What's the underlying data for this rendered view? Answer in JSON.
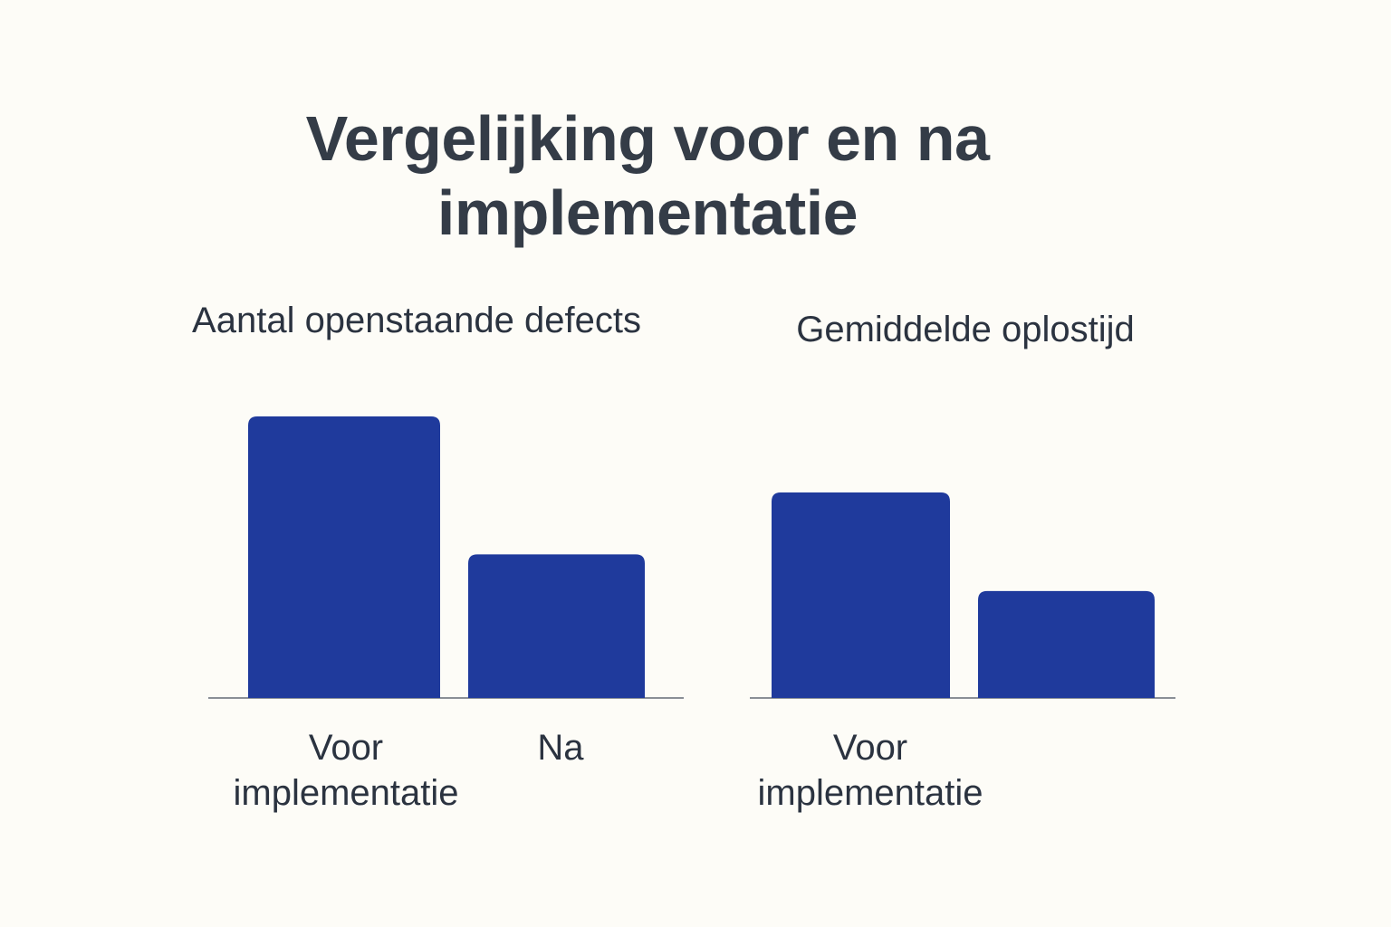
{
  "title": "Vergelijking voor en na implementatie",
  "chart_data": [
    {
      "type": "bar",
      "title": "Aantal openstaande defects",
      "categories": [
        "Voor implementatie",
        "Na"
      ],
      "values": [
        100,
        51
      ],
      "ylim": [
        0,
        100
      ],
      "grid": false,
      "color": "#1f3a9c"
    },
    {
      "type": "bar",
      "title": "Gemiddelde oplostijd",
      "categories": [
        "Voor implementatie",
        ""
      ],
      "values": [
        73,
        38
      ],
      "ylim": [
        0,
        100
      ],
      "grid": false,
      "color": "#1f3a9c"
    }
  ]
}
